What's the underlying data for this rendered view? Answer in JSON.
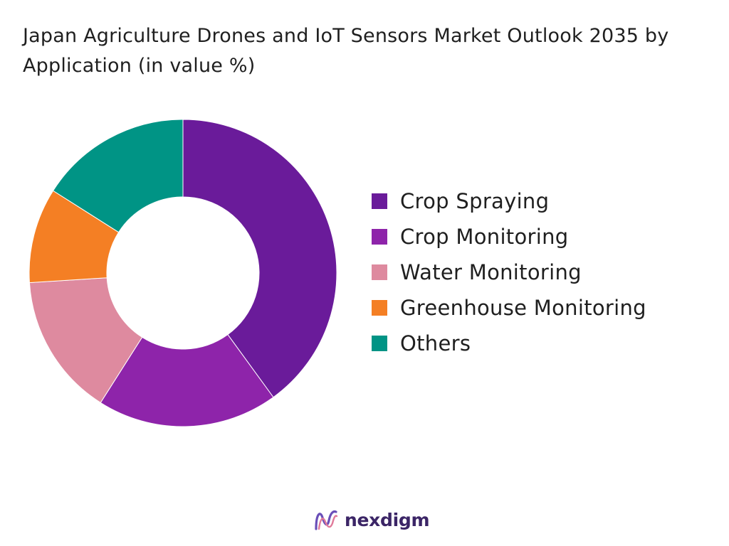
{
  "chart_data": {
    "type": "pie",
    "title": "Japan Agriculture Drones and IoT Sensors Market Outlook 2035 by Application (in value %)",
    "donut": true,
    "categories": [
      "Crop Spraying",
      "Crop Monitoring",
      "Water Monitoring",
      "Greenhouse Monitoring",
      "Others"
    ],
    "values": [
      40,
      19,
      15,
      10,
      16
    ],
    "colors": [
      "#6a1b9a",
      "#8e24aa",
      "#de8a9f",
      "#f47f24",
      "#009485"
    ],
    "legend_position": "right"
  },
  "brand": {
    "name": "nexdigm",
    "color": "#3b2566"
  }
}
